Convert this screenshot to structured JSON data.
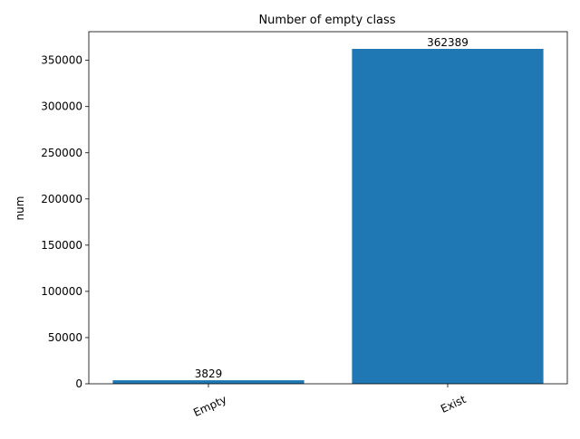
{
  "chart_data": {
    "type": "bar",
    "title": "Number of empty class",
    "xlabel": "",
    "ylabel": "num",
    "categories": [
      "Empty",
      "Exist"
    ],
    "values": [
      3829,
      362389
    ],
    "data_labels": [
      "3829",
      "362389"
    ],
    "ylim": [
      0,
      381000
    ],
    "yticks": [
      0,
      50000,
      100000,
      150000,
      200000,
      250000,
      300000,
      350000
    ],
    "ytick_labels": [
      "0",
      "50000",
      "100000",
      "150000",
      "200000",
      "250000",
      "300000",
      "350000"
    ],
    "xtick_rotation_deg": 25,
    "grid": false,
    "legend": "none",
    "bar_color": "#1f77b4"
  }
}
